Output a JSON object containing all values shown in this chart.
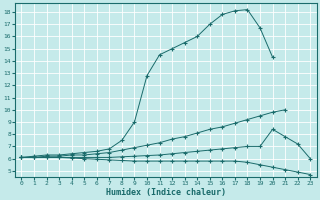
{
  "xlabel": "Humidex (Indice chaleur)",
  "bg_color": "#c5eaea",
  "line_color": "#1a6b6b",
  "grid_color": "#ffffff",
  "xlim": [
    -0.5,
    23.5
  ],
  "ylim": [
    4.5,
    18.7
  ],
  "xticks": [
    0,
    1,
    2,
    3,
    4,
    5,
    6,
    7,
    8,
    9,
    10,
    11,
    12,
    13,
    14,
    15,
    16,
    17,
    18,
    19,
    20,
    21,
    22,
    23
  ],
  "yticks": [
    5,
    6,
    7,
    8,
    9,
    10,
    11,
    12,
    13,
    14,
    15,
    16,
    17,
    18
  ],
  "curve1_x": [
    0,
    1,
    2,
    3,
    4,
    5,
    6,
    7,
    8,
    9,
    10,
    11,
    12,
    13,
    14,
    15,
    16,
    17,
    18,
    19,
    20
  ],
  "curve1_y": [
    6.1,
    6.2,
    6.3,
    6.3,
    6.4,
    6.5,
    6.6,
    6.8,
    7.5,
    9.0,
    12.8,
    14.5,
    15.0,
    15.5,
    16.0,
    17.0,
    17.8,
    18.1,
    18.2,
    16.7,
    14.3
  ],
  "curve2_x": [
    0,
    1,
    2,
    3,
    4,
    5,
    6,
    7,
    8,
    9,
    10,
    11,
    12,
    13,
    14,
    15,
    16,
    17,
    18,
    19,
    20,
    21,
    22,
    23
  ],
  "curve2_y": [
    6.1,
    6.1,
    6.2,
    6.2,
    6.3,
    6.3,
    6.4,
    6.5,
    6.7,
    6.9,
    7.1,
    7.3,
    7.6,
    7.8,
    8.1,
    8.4,
    8.6,
    8.9,
    9.2,
    9.5,
    9.8,
    10.0,
    null,
    null
  ],
  "curve3_x": [
    0,
    1,
    2,
    3,
    4,
    5,
    6,
    7,
    8,
    9,
    10,
    11,
    12,
    13,
    14,
    15,
    16,
    17,
    18,
    19,
    20,
    21,
    22,
    23
  ],
  "curve3_y": [
    6.1,
    6.1,
    6.1,
    6.1,
    6.1,
    6.1,
    6.1,
    6.1,
    6.15,
    6.2,
    6.25,
    6.3,
    6.4,
    6.5,
    6.6,
    6.7,
    6.8,
    6.9,
    7.0,
    7.0,
    8.4,
    7.8,
    7.2,
    6.0
  ],
  "curve4_x": [
    0,
    1,
    2,
    3,
    4,
    5,
    6,
    7,
    8,
    9,
    10,
    11,
    12,
    13,
    14,
    15,
    16,
    17,
    18,
    19,
    20,
    21,
    22,
    23
  ],
  "curve4_y": [
    6.1,
    6.1,
    6.1,
    6.1,
    6.05,
    6.0,
    5.95,
    5.9,
    5.85,
    5.8,
    5.8,
    5.8,
    5.8,
    5.8,
    5.8,
    5.8,
    5.8,
    5.8,
    5.7,
    5.5,
    5.3,
    5.1,
    4.9,
    4.7
  ]
}
